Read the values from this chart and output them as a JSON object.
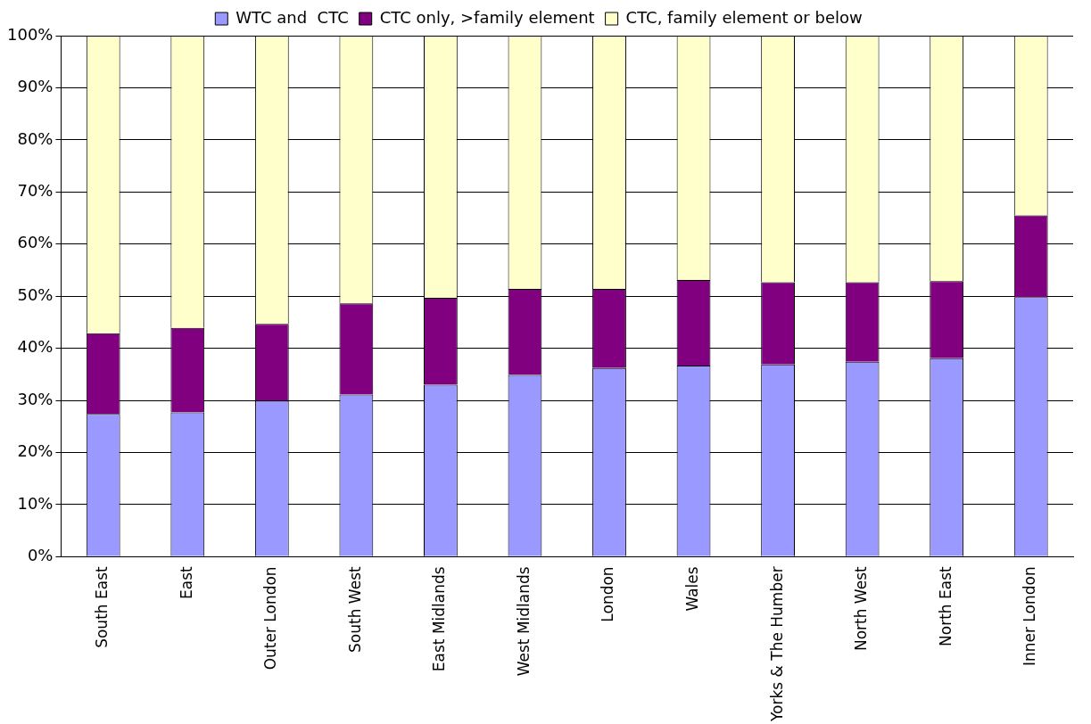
{
  "chart_data": {
    "type": "bar",
    "stacked": true,
    "categories": [
      "South East",
      "East",
      "Outer London",
      "South West",
      "East Midlands",
      "West Midlands",
      "London",
      "Wales",
      "Yorks & The Humber",
      "North West",
      "North East",
      "Inner London"
    ],
    "series": [
      {
        "name": "WTC and  CTC",
        "color": "#9999ff",
        "values": [
          27.4,
          27.7,
          29.9,
          31.1,
          33.0,
          34.9,
          36.2,
          36.7,
          36.9,
          37.4,
          38.1,
          49.8
        ]
      },
      {
        "name": "CTC only, >family element",
        "color": "#800080",
        "values": [
          15.5,
          16.2,
          14.8,
          17.5,
          16.7,
          16.5,
          15.2,
          16.4,
          15.8,
          15.3,
          14.8,
          15.7
        ]
      },
      {
        "name": "CTC, family element or below",
        "color": "#ffffcc",
        "values": [
          57.1,
          56.1,
          55.3,
          51.4,
          50.3,
          48.6,
          48.6,
          46.9,
          47.3,
          47.3,
          47.1,
          34.5
        ]
      }
    ],
    "ylim": [
      0,
      100
    ],
    "yticks": [
      {
        "value": 0,
        "label": "0%"
      },
      {
        "value": 10,
        "label": "10%"
      },
      {
        "value": 20,
        "label": "20%"
      },
      {
        "value": 30,
        "label": "30%"
      },
      {
        "value": 40,
        "label": "40%"
      },
      {
        "value": 50,
        "label": "50%"
      },
      {
        "value": 60,
        "label": "60%"
      },
      {
        "value": 70,
        "label": "70%"
      },
      {
        "value": 80,
        "label": "80%"
      },
      {
        "value": 90,
        "label": "90%"
      },
      {
        "value": 100,
        "label": "100%"
      }
    ],
    "grid": "y",
    "legend": "top"
  }
}
